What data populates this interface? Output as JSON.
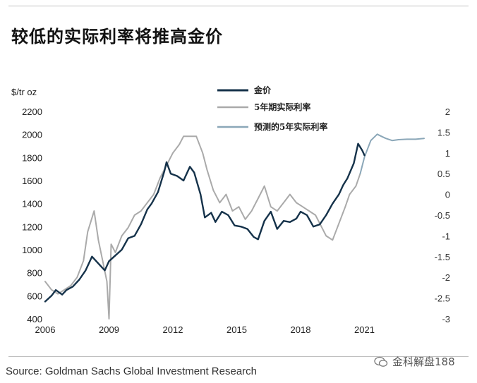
{
  "header": {
    "title": "较低的实际利率将推高金价"
  },
  "footer": {
    "source": "Source: Goldman Sachs Global Investment Research",
    "watermark": "金科解盘188"
  },
  "colors": {
    "gold": "#15324a",
    "real_rate": "#aaaaaa",
    "forecast": "#8ba7b8"
  },
  "chart_data": {
    "type": "line",
    "title": "较低的实际利率将推高金价",
    "ylabel": "$/tr oz",
    "ylim": [
      400,
      2200
    ],
    "y2lim": [
      -3,
      2
    ],
    "xlim": [
      2006,
      2023.9
    ],
    "yticks": [
      400,
      600,
      800,
      1000,
      1200,
      1400,
      1600,
      1800,
      2000,
      2200
    ],
    "y2ticks": [
      -3,
      -2.5,
      -2,
      -1.5,
      -1,
      -0.5,
      0,
      0.5,
      1,
      1.5,
      2
    ],
    "xticks": [
      2006,
      2009,
      2012,
      2015,
      2018,
      2021
    ],
    "legend_position": "top-center",
    "series": [
      {
        "name": "金价",
        "axis": "left",
        "color": "#15324a",
        "width": 2.4,
        "x": [
          2006.0,
          2006.3,
          2006.5,
          2006.8,
          2007.0,
          2007.3,
          2007.6,
          2007.9,
          2008.2,
          2008.5,
          2008.8,
          2009.0,
          2009.3,
          2009.6,
          2009.9,
          2010.2,
          2010.5,
          2010.8,
          2011.0,
          2011.3,
          2011.6,
          2011.7,
          2011.9,
          2012.2,
          2012.5,
          2012.8,
          2013.0,
          2013.3,
          2013.5,
          2013.8,
          2014.0,
          2014.3,
          2014.6,
          2014.9,
          2015.2,
          2015.5,
          2015.8,
          2016.0,
          2016.3,
          2016.6,
          2016.9,
          2017.2,
          2017.5,
          2017.8,
          2018.0,
          2018.3,
          2018.6,
          2018.9,
          2019.2,
          2019.5,
          2019.8,
          2020.0,
          2020.2,
          2020.5,
          2020.7,
          2020.9,
          2021.0
        ],
        "values": [
          550,
          600,
          650,
          610,
          650,
          680,
          740,
          820,
          940,
          880,
          820,
          900,
          950,
          1000,
          1100,
          1120,
          1220,
          1350,
          1400,
          1500,
          1680,
          1760,
          1660,
          1640,
          1600,
          1720,
          1670,
          1480,
          1280,
          1320,
          1240,
          1330,
          1300,
          1210,
          1200,
          1180,
          1110,
          1090,
          1250,
          1330,
          1180,
          1250,
          1240,
          1270,
          1330,
          1300,
          1200,
          1220,
          1300,
          1400,
          1480,
          1560,
          1620,
          1750,
          1920,
          1860,
          1820
        ]
      },
      {
        "name": "5年期实际利率",
        "axis": "right",
        "color": "#aaaaaa",
        "width": 2.0,
        "x": [
          2006.0,
          2006.3,
          2006.6,
          2006.9,
          2007.2,
          2007.5,
          2007.8,
          2008.0,
          2008.3,
          2008.5,
          2008.7,
          2008.9,
          2009.0,
          2009.1,
          2009.3,
          2009.6,
          2009.9,
          2010.2,
          2010.5,
          2010.8,
          2011.1,
          2011.4,
          2011.7,
          2012.0,
          2012.3,
          2012.5,
          2012.8,
          2013.1,
          2013.4,
          2013.6,
          2013.9,
          2014.2,
          2014.5,
          2014.8,
          2015.1,
          2015.4,
          2015.7,
          2016.0,
          2016.3,
          2016.6,
          2016.9,
          2017.2,
          2017.5,
          2017.8,
          2018.1,
          2018.4,
          2018.7,
          2018.9,
          2019.2,
          2019.5,
          2019.8,
          2020.1,
          2020.3,
          2020.6,
          2020.8
        ],
        "values": [
          -2.1,
          -2.3,
          -2.4,
          -2.3,
          -2.2,
          -2.0,
          -1.6,
          -0.9,
          -0.4,
          -1.1,
          -1.6,
          -2.1,
          -3.0,
          -1.2,
          -1.4,
          -1.0,
          -0.8,
          -0.5,
          -0.4,
          -0.2,
          0.0,
          0.4,
          0.7,
          1.0,
          1.2,
          1.4,
          1.4,
          1.4,
          1.0,
          0.6,
          0.1,
          -0.2,
          0.0,
          -0.4,
          -0.3,
          -0.6,
          -0.4,
          -0.1,
          0.2,
          -0.3,
          -0.4,
          -0.2,
          0.0,
          -0.2,
          -0.3,
          -0.4,
          -0.5,
          -0.7,
          -1.0,
          -1.1,
          -0.7,
          -0.3,
          0.0,
          0.2,
          0.5
        ]
      },
      {
        "name": "预测的5年实际利率",
        "axis": "right",
        "color": "#8ba7b8",
        "width": 2.0,
        "x": [
          2020.8,
          2021.0,
          2021.3,
          2021.6,
          2021.8,
          2022.0,
          2022.3,
          2022.6,
          2023.0,
          2023.4,
          2023.8
        ],
        "values": [
          0.5,
          0.9,
          1.3,
          1.45,
          1.4,
          1.35,
          1.3,
          1.32,
          1.33,
          1.33,
          1.35
        ]
      }
    ]
  }
}
